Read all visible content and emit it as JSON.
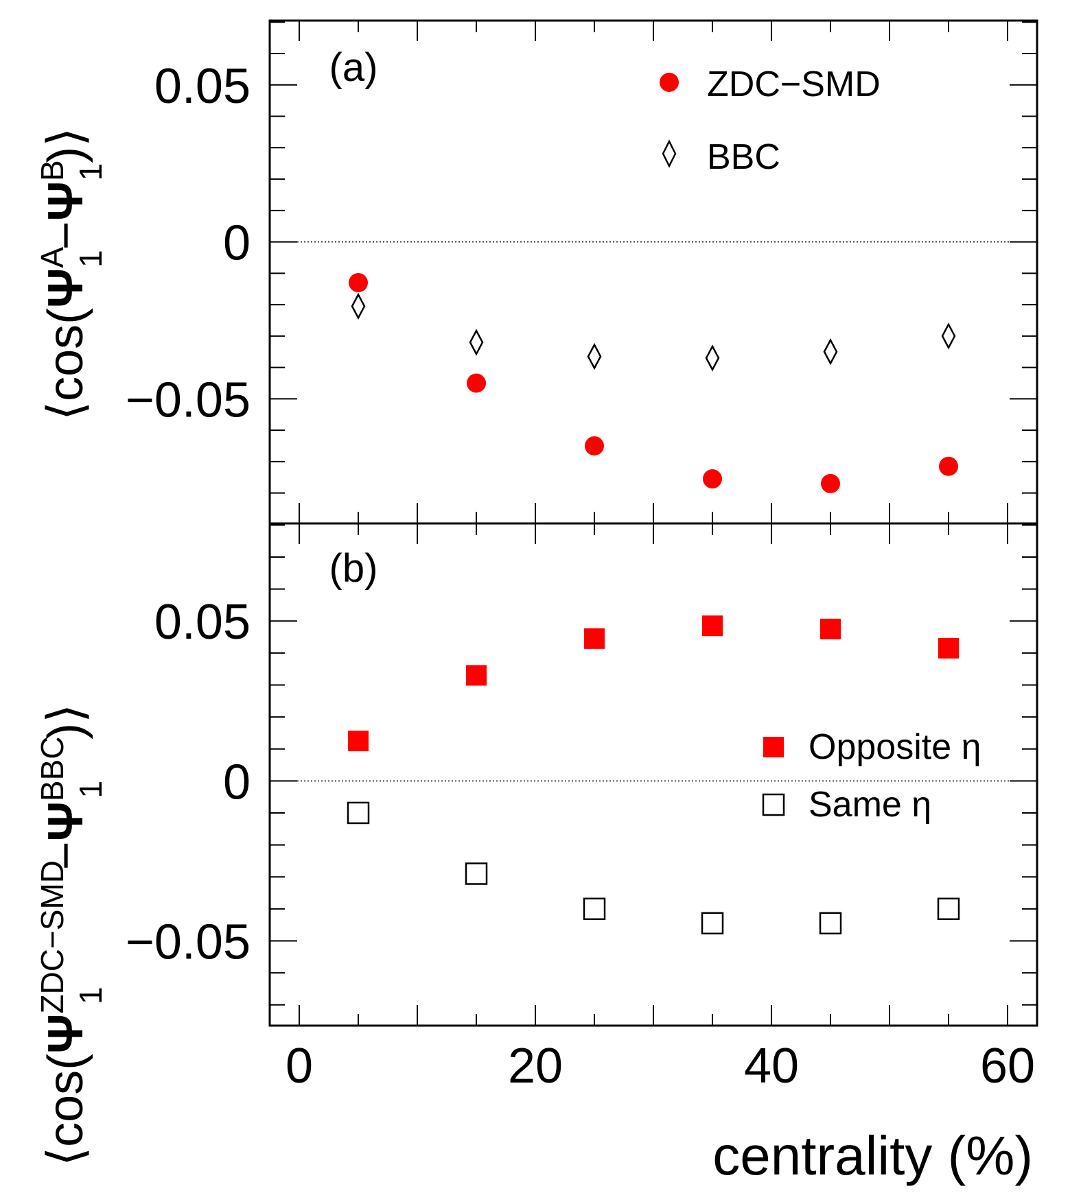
{
  "figure": {
    "xlabel": "centrality (%)",
    "x_ticks": [
      "0",
      "20",
      "40",
      "60"
    ],
    "x_tick_values": [
      0,
      20,
      40,
      60
    ]
  },
  "chart_data": [
    {
      "type": "scatter",
      "panel_label": "(a)",
      "ylabel": {
        "open": "⟨cos(",
        "psi1": "Ψ",
        "sup1": "A",
        "sub1": "1",
        "minus": "−",
        "psi2": "Ψ",
        "sup2": "B",
        "sub2": "1",
        "close": ")⟩"
      },
      "x": [
        5,
        15,
        25,
        35,
        45,
        55
      ],
      "series": [
        {
          "name": "ZDC−SMD",
          "marker": "filled-circle",
          "color": "#ff0000",
          "values": [
            -0.013,
            -0.045,
            -0.065,
            -0.0755,
            -0.077,
            -0.0715
          ]
        },
        {
          "name": "BBC",
          "marker": "open-diamond",
          "color": "#000000",
          "values": [
            -0.0205,
            -0.032,
            -0.0365,
            -0.037,
            -0.035,
            -0.03
          ]
        }
      ],
      "xlim": [
        -2.5,
        62.5
      ],
      "ylim": [
        -0.0897,
        0.0705
      ],
      "y_ticks": [
        "0.05",
        "0",
        "−0.05"
      ],
      "y_tick_values": [
        0.05,
        0,
        -0.05
      ],
      "zero_line": true,
      "legend_position": "top-right"
    },
    {
      "type": "scatter",
      "panel_label": "(b)",
      "ylabel": {
        "open": "⟨cos(",
        "psi1": "Ψ",
        "sup1": "ZDC−SMD",
        "sub1": "1",
        "minus": "−",
        "psi2": "Ψ",
        "sup2": "BBC",
        "sub2": "1",
        "close": ")⟩"
      },
      "x": [
        5,
        15,
        25,
        35,
        45,
        55
      ],
      "series": [
        {
          "name": "Opposite η",
          "marker": "filled-square",
          "color": "#ff0000",
          "values": [
            0.0125,
            0.033,
            0.0445,
            0.0485,
            0.0475,
            0.0415
          ]
        },
        {
          "name": "Same η",
          "marker": "open-square",
          "color": "#000000",
          "values": [
            -0.01,
            -0.029,
            -0.04,
            -0.0445,
            -0.0445,
            -0.04
          ]
        }
      ],
      "xlim": [
        -2.5,
        62.5
      ],
      "ylim": [
        -0.0765,
        0.0805
      ],
      "y_ticks": [
        "0.05",
        "0",
        "−0.05"
      ],
      "y_tick_values": [
        0.05,
        0,
        -0.05
      ],
      "zero_line": true,
      "legend_position": "right"
    }
  ]
}
